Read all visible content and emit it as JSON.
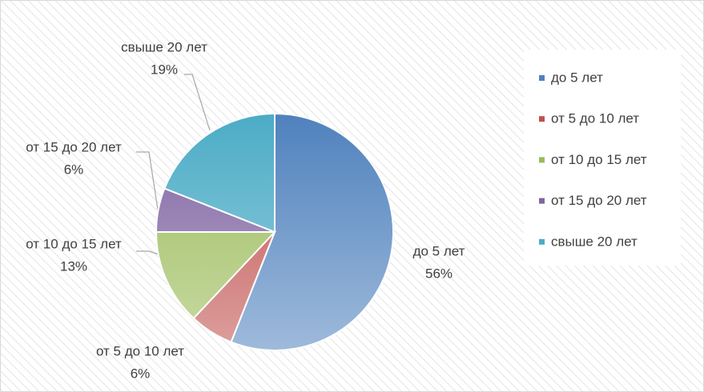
{
  "chart_data": {
    "type": "pie",
    "categories": [
      "до 5 лет",
      "от 5 до 10 лет",
      "от 10 до 15 лет",
      "от 15 до 20 лет",
      "свыше 20 лет"
    ],
    "values": [
      56,
      6,
      13,
      6,
      19
    ],
    "value_labels": [
      "56%",
      "6%",
      "13%",
      "6%",
      "19%"
    ],
    "colors": [
      "#4f81bd",
      "#c0504d",
      "#9bbb59",
      "#8064a2",
      "#4bacc6"
    ],
    "legend": "right"
  }
}
